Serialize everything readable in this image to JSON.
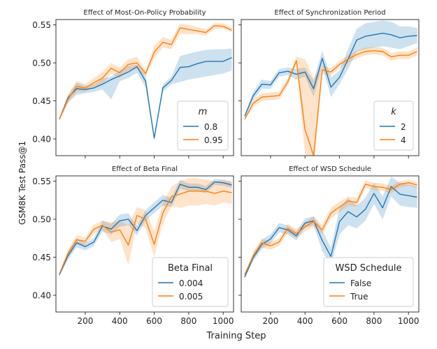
{
  "figure": {
    "ylabel": "GSM8K Test Pass@1",
    "xlabel": "Training Step"
  },
  "chart_data": [
    {
      "type": "line",
      "title": "Effect of Most-On-Policy Probability",
      "xlabel": "",
      "ylabel": "",
      "xlim": [
        30,
        1060
      ],
      "ylim": [
        0.378,
        0.557
      ],
      "xticks": [
        200,
        400,
        600,
        800,
        1000
      ],
      "yticks": [
        0.4,
        0.45,
        0.5,
        0.55
      ],
      "show_xticklabels": false,
      "show_yticklabels": true,
      "legend": {
        "title": "m",
        "title_italic": true,
        "position": "lower right"
      },
      "x": [
        50,
        100,
        150,
        200,
        250,
        300,
        350,
        400,
        450,
        500,
        550,
        600,
        650,
        700,
        750,
        800,
        850,
        900,
        950,
        1000,
        1050
      ],
      "series": [
        {
          "name": "0.8",
          "color": "#1f77b4",
          "values": [
            0.426,
            0.454,
            0.466,
            0.465,
            0.467,
            0.472,
            0.478,
            0.483,
            0.488,
            0.495,
            0.476,
            0.401,
            0.467,
            0.477,
            0.494,
            0.495,
            0.499,
            0.502,
            0.502,
            0.502,
            0.507
          ],
          "lower": [
            0.424,
            0.448,
            0.458,
            0.46,
            0.462,
            0.465,
            0.452,
            0.476,
            0.48,
            0.487,
            0.468,
            0.398,
            0.462,
            0.472,
            0.475,
            0.478,
            0.48,
            0.482,
            0.484,
            0.486,
            0.49
          ],
          "upper": [
            0.428,
            0.458,
            0.474,
            0.47,
            0.472,
            0.479,
            0.482,
            0.49,
            0.496,
            0.498,
            0.484,
            0.404,
            0.472,
            0.482,
            0.509,
            0.512,
            0.515,
            0.517,
            0.518,
            0.518,
            0.519
          ]
        },
        {
          "name": "0.95",
          "color": "#ff7f0e",
          "values": [
            0.426,
            0.452,
            0.469,
            0.467,
            0.474,
            0.48,
            0.493,
            0.487,
            0.498,
            0.5,
            0.486,
            0.514,
            0.527,
            0.524,
            0.546,
            0.544,
            0.542,
            0.54,
            0.549,
            0.548,
            0.543
          ],
          "lower": [
            0.424,
            0.447,
            0.462,
            0.462,
            0.468,
            0.472,
            0.486,
            0.48,
            0.49,
            0.492,
            0.482,
            0.506,
            0.52,
            0.518,
            0.538,
            0.538,
            0.538,
            0.536,
            0.545,
            0.545,
            0.54
          ],
          "upper": [
            0.428,
            0.458,
            0.476,
            0.472,
            0.48,
            0.488,
            0.5,
            0.494,
            0.505,
            0.508,
            0.49,
            0.522,
            0.534,
            0.53,
            0.552,
            0.55,
            0.547,
            0.544,
            0.552,
            0.552,
            0.546
          ]
        }
      ]
    },
    {
      "type": "line",
      "title": "Effect of Synchronization Period",
      "xlabel": "",
      "ylabel": "",
      "xlim": [
        30,
        1060
      ],
      "ylim": [
        0.378,
        0.557
      ],
      "xticks": [
        200,
        400,
        600,
        800,
        1000
      ],
      "yticks": [
        0.4,
        0.45,
        0.5,
        0.55
      ],
      "show_xticklabels": false,
      "show_yticklabels": false,
      "legend": {
        "title": "k",
        "title_italic": true,
        "position": "lower right"
      },
      "x": [
        50,
        100,
        150,
        200,
        250,
        300,
        350,
        400,
        450,
        500,
        550,
        600,
        650,
        700,
        750,
        800,
        850,
        900,
        950,
        1000,
        1050
      ],
      "series": [
        {
          "name": "2",
          "color": "#1f77b4",
          "values": [
            0.43,
            0.457,
            0.472,
            0.471,
            0.487,
            0.489,
            0.485,
            0.488,
            0.466,
            0.506,
            0.468,
            0.481,
            0.505,
            0.53,
            0.535,
            0.537,
            0.539,
            0.537,
            0.533,
            0.535,
            0.536
          ],
          "lower": [
            0.428,
            0.452,
            0.466,
            0.466,
            0.482,
            0.484,
            0.478,
            0.482,
            0.455,
            0.496,
            0.455,
            0.472,
            0.492,
            0.515,
            0.518,
            0.52,
            0.522,
            0.52,
            0.518,
            0.522,
            0.526
          ],
          "upper": [
            0.432,
            0.462,
            0.478,
            0.476,
            0.492,
            0.494,
            0.492,
            0.494,
            0.477,
            0.516,
            0.481,
            0.49,
            0.518,
            0.545,
            0.552,
            0.554,
            0.556,
            0.554,
            0.548,
            0.548,
            0.546
          ]
        },
        {
          "name": "4",
          "color": "#ff7f0e",
          "values": [
            0.426,
            0.447,
            0.455,
            0.456,
            0.457,
            0.475,
            0.503,
            0.412,
            0.378,
            0.491,
            0.488,
            0.498,
            0.505,
            0.511,
            0.515,
            0.516,
            0.515,
            0.508,
            0.51,
            0.51,
            0.515
          ],
          "lower": [
            0.424,
            0.442,
            0.45,
            0.451,
            0.452,
            0.47,
            0.498,
            0.38,
            0.36,
            0.485,
            0.483,
            0.493,
            0.5,
            0.506,
            0.51,
            0.511,
            0.51,
            0.503,
            0.505,
            0.505,
            0.51
          ],
          "upper": [
            0.428,
            0.452,
            0.46,
            0.461,
            0.462,
            0.48,
            0.508,
            0.505,
            0.48,
            0.497,
            0.493,
            0.503,
            0.51,
            0.516,
            0.52,
            0.521,
            0.52,
            0.513,
            0.515,
            0.515,
            0.52
          ]
        }
      ]
    },
    {
      "type": "line",
      "title": "Effect of Beta Final",
      "xlabel": "",
      "ylabel": "",
      "xlim": [
        30,
        1060
      ],
      "ylim": [
        0.378,
        0.557
      ],
      "xticks": [
        200,
        400,
        600,
        800,
        1000
      ],
      "yticks": [
        0.4,
        0.45,
        0.5,
        0.55
      ],
      "show_xticklabels": true,
      "show_yticklabels": true,
      "legend": {
        "title": "Beta Final",
        "title_italic": false,
        "position": "lower right"
      },
      "x": [
        50,
        100,
        150,
        200,
        250,
        300,
        350,
        400,
        450,
        500,
        550,
        600,
        650,
        700,
        750,
        800,
        850,
        900,
        950,
        1000,
        1050
      ],
      "series": [
        {
          "name": "0.004",
          "color": "#1f77b4",
          "values": [
            0.427,
            0.452,
            0.469,
            0.464,
            0.47,
            0.491,
            0.487,
            0.498,
            0.5,
            0.485,
            0.505,
            0.515,
            0.525,
            0.522,
            0.546,
            0.542,
            0.542,
            0.539,
            0.549,
            0.548,
            0.545
          ],
          "lower": [
            0.425,
            0.447,
            0.463,
            0.459,
            0.465,
            0.484,
            0.48,
            0.49,
            0.492,
            0.479,
            0.498,
            0.508,
            0.518,
            0.516,
            0.54,
            0.537,
            0.537,
            0.534,
            0.545,
            0.544,
            0.541
          ],
          "upper": [
            0.429,
            0.457,
            0.475,
            0.469,
            0.475,
            0.498,
            0.494,
            0.506,
            0.508,
            0.491,
            0.512,
            0.522,
            0.532,
            0.528,
            0.552,
            0.547,
            0.547,
            0.544,
            0.553,
            0.552,
            0.549
          ]
        },
        {
          "name": "0.005",
          "color": "#ff7f0e",
          "values": [
            0.428,
            0.455,
            0.473,
            0.471,
            0.487,
            0.492,
            0.483,
            0.486,
            0.466,
            0.505,
            0.5,
            0.467,
            0.508,
            0.53,
            0.533,
            0.537,
            0.537,
            0.537,
            0.534,
            0.537,
            0.535
          ],
          "lower": [
            0.426,
            0.45,
            0.467,
            0.466,
            0.481,
            0.486,
            0.47,
            0.474,
            0.44,
            0.494,
            0.488,
            0.45,
            0.495,
            0.517,
            0.515,
            0.518,
            0.518,
            0.52,
            0.518,
            0.522,
            0.52
          ],
          "upper": [
            0.43,
            0.46,
            0.479,
            0.476,
            0.493,
            0.498,
            0.496,
            0.498,
            0.492,
            0.516,
            0.512,
            0.484,
            0.521,
            0.543,
            0.55,
            0.554,
            0.554,
            0.552,
            0.55,
            0.552,
            0.55
          ]
        }
      ]
    },
    {
      "type": "line",
      "title": "Effect of WSD Schedule",
      "xlabel": "",
      "ylabel": "",
      "xlim": [
        30,
        1060
      ],
      "ylim": [
        0.378,
        0.557
      ],
      "xticks": [
        200,
        400,
        600,
        800,
        1000
      ],
      "yticks": [
        0.4,
        0.45,
        0.5,
        0.55
      ],
      "show_xticklabels": true,
      "show_yticklabels": false,
      "legend": {
        "title": "WSD Schedule",
        "title_italic": false,
        "position": "lower right"
      },
      "x": [
        50,
        100,
        150,
        200,
        250,
        300,
        350,
        400,
        450,
        500,
        550,
        600,
        650,
        700,
        750,
        800,
        850,
        900,
        950,
        1000,
        1050
      ],
      "series": [
        {
          "name": "False",
          "color": "#1f77b4",
          "values": [
            0.424,
            0.45,
            0.467,
            0.474,
            0.489,
            0.486,
            0.478,
            0.495,
            0.498,
            0.472,
            0.451,
            0.497,
            0.51,
            0.503,
            0.513,
            0.534,
            0.515,
            0.543,
            0.533,
            0.531,
            0.529
          ],
          "lower": [
            0.422,
            0.445,
            0.461,
            0.468,
            0.483,
            0.48,
            0.472,
            0.489,
            0.492,
            0.458,
            0.44,
            0.48,
            0.492,
            0.488,
            0.498,
            0.52,
            0.5,
            0.53,
            0.518,
            0.516,
            0.515
          ],
          "upper": [
            0.426,
            0.455,
            0.473,
            0.48,
            0.495,
            0.492,
            0.484,
            0.501,
            0.504,
            0.486,
            0.462,
            0.514,
            0.528,
            0.518,
            0.528,
            0.548,
            0.53,
            0.556,
            0.548,
            0.546,
            0.543
          ]
        },
        {
          "name": "True",
          "color": "#ff7f0e",
          "values": [
            0.427,
            0.452,
            0.469,
            0.465,
            0.47,
            0.488,
            0.481,
            0.49,
            0.497,
            0.486,
            0.508,
            0.516,
            0.524,
            0.522,
            0.546,
            0.543,
            0.542,
            0.539,
            0.546,
            0.548,
            0.545
          ],
          "lower": [
            0.425,
            0.447,
            0.463,
            0.46,
            0.465,
            0.482,
            0.475,
            0.484,
            0.49,
            0.48,
            0.501,
            0.509,
            0.518,
            0.516,
            0.541,
            0.538,
            0.537,
            0.534,
            0.542,
            0.544,
            0.541
          ],
          "upper": [
            0.429,
            0.457,
            0.475,
            0.47,
            0.475,
            0.494,
            0.487,
            0.496,
            0.504,
            0.492,
            0.515,
            0.523,
            0.53,
            0.528,
            0.551,
            0.548,
            0.547,
            0.544,
            0.55,
            0.552,
            0.549
          ]
        }
      ]
    }
  ]
}
